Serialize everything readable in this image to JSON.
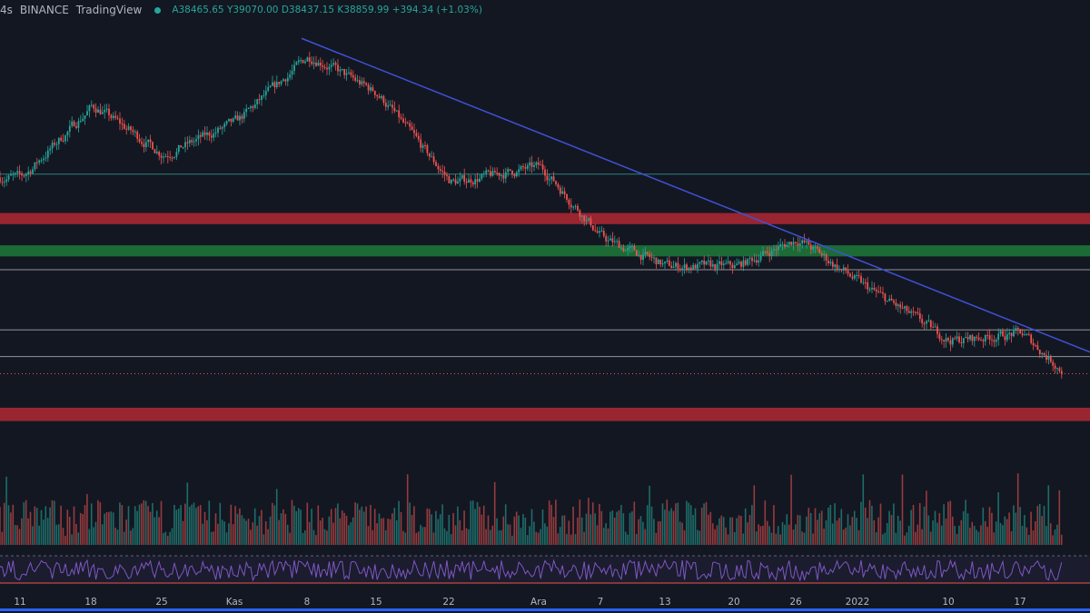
{
  "legend": {
    "interval": "4s",
    "exchange": "BINANCE",
    "platform": "TradingView",
    "open_label": "A",
    "open": "38465.65",
    "high_label": "Y",
    "high": "39070.00",
    "low_label": "D",
    "low": "38437.15",
    "close_label": "K",
    "close": "38859.99",
    "change": "+394.34 (+1.03%)"
  },
  "colors": {
    "background": "#131722",
    "up": "#26a69a",
    "down": "#ef5350",
    "trendline": "#3f51d6",
    "resistance_zone": "#b22833",
    "support_zone": "#1f7a3a",
    "level_line": "#c8c8c8",
    "rsi": "#7e57c2"
  },
  "x_axis_labels": [
    "11",
    "18",
    "25",
    "Kas",
    "8",
    "15",
    "22",
    "Ara",
    "7",
    "13",
    "20",
    "26",
    "2022",
    "10",
    "17"
  ],
  "chart_data": {
    "type": "candlestick",
    "title": "",
    "ylim": [
      30000,
      70000
    ],
    "price_path": [
      {
        "x": "11",
        "y": 56500
      },
      {
        "x": "18",
        "y": 63000
      },
      {
        "x": "25",
        "y": 58500
      },
      {
        "x": "Kas",
        "y": 61500
      },
      {
        "x": "8",
        "y": 67500
      },
      {
        "x": "15",
        "y": 64000
      },
      {
        "x": "22",
        "y": 56000
      },
      {
        "x": "Ara",
        "y": 57500
      },
      {
        "x": "7",
        "y": 51000
      },
      {
        "x": "13",
        "y": 48500
      },
      {
        "x": "20",
        "y": 48500
      },
      {
        "x": "26",
        "y": 51000
      },
      {
        "x": "2022",
        "y": 47000
      },
      {
        "x": "10",
        "y": 41800
      },
      {
        "x": "17",
        "y": 42500
      },
      {
        "x": "last",
        "y": 38860
      }
    ],
    "trendline": [
      {
        "x": "8",
        "y": 69000
      },
      {
        "x": "end",
        "y": 40800
      }
    ],
    "zones": [
      {
        "type": "resistance",
        "from": 52300,
        "to": 53300
      },
      {
        "type": "support",
        "from": 49400,
        "to": 50400
      },
      {
        "type": "resistance",
        "from": 34600,
        "to": 35800
      }
    ],
    "levels": [
      56800,
      48200,
      42800,
      40400
    ],
    "indicators": [
      "volume",
      "rsi"
    ]
  }
}
